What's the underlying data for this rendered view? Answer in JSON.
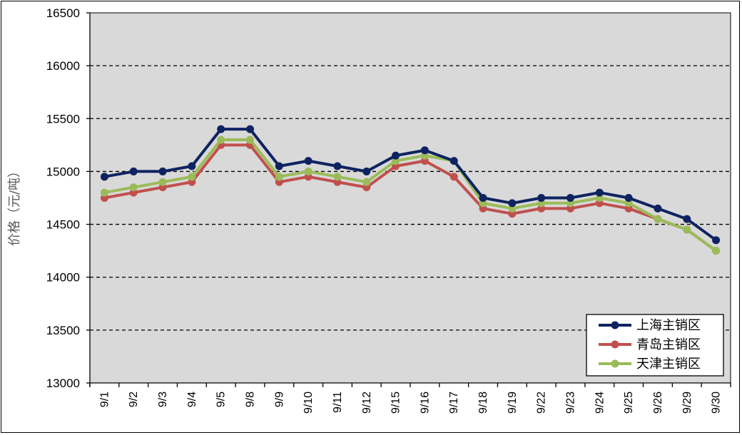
{
  "chart_data": {
    "type": "line",
    "title": "",
    "xlabel": "",
    "ylabel": "价格（元/吨）",
    "ylim": [
      13000,
      16500
    ],
    "yticks": [
      13000,
      13500,
      14000,
      14500,
      15000,
      15500,
      16000,
      16500
    ],
    "grid": "horizontal dashed",
    "legend_position": "bottom-right",
    "categories": [
      "9/1",
      "9/2",
      "9/3",
      "9/4",
      "9/5",
      "9/8",
      "9/9",
      "9/10",
      "9/11",
      "9/12",
      "9/15",
      "9/16",
      "9/17",
      "9/18",
      "9/19",
      "9/22",
      "9/23",
      "9/24",
      "9/25",
      "9/26",
      "9/29",
      "9/30"
    ],
    "series": [
      {
        "name": "上海主销区",
        "color": "#0e2360",
        "values": [
          14950,
          15000,
          15000,
          15050,
          15400,
          15400,
          15050,
          15100,
          15050,
          15000,
          15150,
          15200,
          15100,
          14750,
          14700,
          14750,
          14750,
          14800,
          14750,
          14650,
          14550,
          14350
        ]
      },
      {
        "name": "青岛主销区",
        "color": "#c0504d",
        "values": [
          14750,
          14800,
          14850,
          14900,
          15250,
          15250,
          14900,
          14950,
          14900,
          14850,
          15050,
          15100,
          14950,
          14650,
          14600,
          14650,
          14650,
          14700,
          14650,
          14550,
          14450,
          14250
        ]
      },
      {
        "name": "天津主销区",
        "color": "#9bbb59",
        "values": [
          14800,
          14850,
          14900,
          14950,
          15300,
          15300,
          14950,
          15000,
          14950,
          14900,
          15100,
          15150,
          15100,
          14700,
          14650,
          14700,
          14700,
          14750,
          14700,
          14550,
          14450,
          14250
        ]
      }
    ]
  }
}
